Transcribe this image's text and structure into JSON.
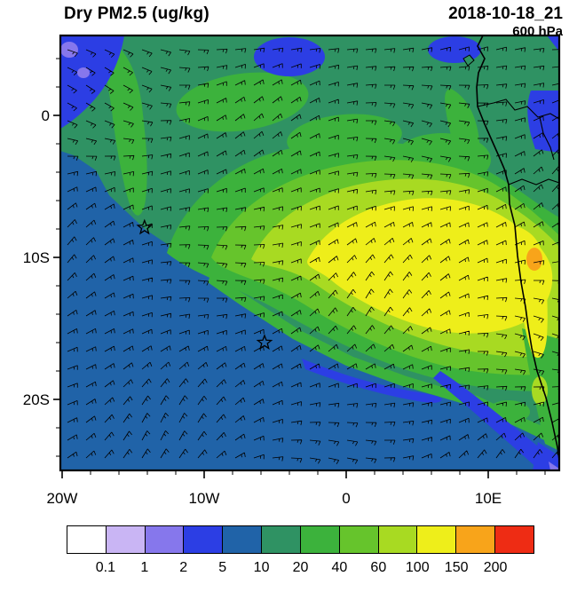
{
  "figure": {
    "title": "Dry PM2.5 (ug/kg)",
    "datetime": "2018-10-18_21",
    "pressure_level": "600 hPa"
  },
  "axes": {
    "y_tick_labels": [
      "0",
      "10S",
      "20S"
    ],
    "x_tick_labels": [
      "20W",
      "10W",
      "0",
      "10E"
    ]
  },
  "colorbar": {
    "units": "ug/kg",
    "labels": [
      "0.1",
      "1",
      "2",
      "5",
      "10",
      "20",
      "40",
      "60",
      "100",
      "150",
      "200"
    ],
    "colors": [
      "#ffffff",
      "#c9b5f4",
      "#8677ec",
      "#2c3ee4",
      "#2063a8",
      "#2f9263",
      "#3cb23c",
      "#66c42c",
      "#a8da22",
      "#eeee1a",
      "#f8a41a",
      "#ee2c14"
    ]
  },
  "markers": [
    {
      "name": "star",
      "lon": -14.2,
      "lat": -7.9
    },
    {
      "name": "star",
      "lon": -5.75,
      "lat": -16.0
    }
  ],
  "chart_data": {
    "type": "heatmap",
    "title": "Dry PM2.5 (ug/kg)",
    "valid_time": "2018-10-18_21",
    "pressure_level": "600 hPa",
    "units": "ug/kg",
    "x_axis": {
      "label": "longitude",
      "tick_labels": [
        "20W",
        "10W",
        "0",
        "10E"
      ],
      "range_deg": [
        -20,
        15
      ]
    },
    "y_axis": {
      "label": "latitude",
      "tick_labels": [
        "0",
        "10S",
        "20S"
      ],
      "range_deg": [
        5.6,
        -25
      ]
    },
    "contour_levels": [
      0.1,
      1,
      2,
      5,
      10,
      20,
      40,
      60,
      100,
      150,
      200
    ],
    "palette": [
      "#ffffff",
      "#c9b5f4",
      "#8677ec",
      "#2c3ee4",
      "#2063a8",
      "#2f9263",
      "#3cb23c",
      "#66c42c",
      "#a8da22",
      "#eeee1a",
      "#f8a41a",
      "#ee2c14"
    ],
    "overlays": [
      "wind-barbs",
      "coastline",
      "country-borders",
      "station-star-markers"
    ],
    "features": [
      {
        "region": "smoke plume over SE Atlantic / Angola coast, centered near 5-12S between 5W and 13E",
        "value_range_ug_kg": "40-100"
      },
      {
        "region": "plume core near 8-11S, 2E-12E",
        "value_range_ug_kg": "60-100"
      },
      {
        "region": "local maximum on Angola coast near 10S 12E",
        "value_range_ug_kg": "100-150"
      },
      {
        "region": "southwestern ocean background",
        "value_range_ug_kg": "5-10"
      },
      {
        "region": "northern equatorial band",
        "value_range_ug_kg": "10-40"
      },
      {
        "region": "low-PM patches: NW corner, top-center, NE land, SE coastal band",
        "value_range_ug_kg": "0.1-5"
      }
    ]
  }
}
